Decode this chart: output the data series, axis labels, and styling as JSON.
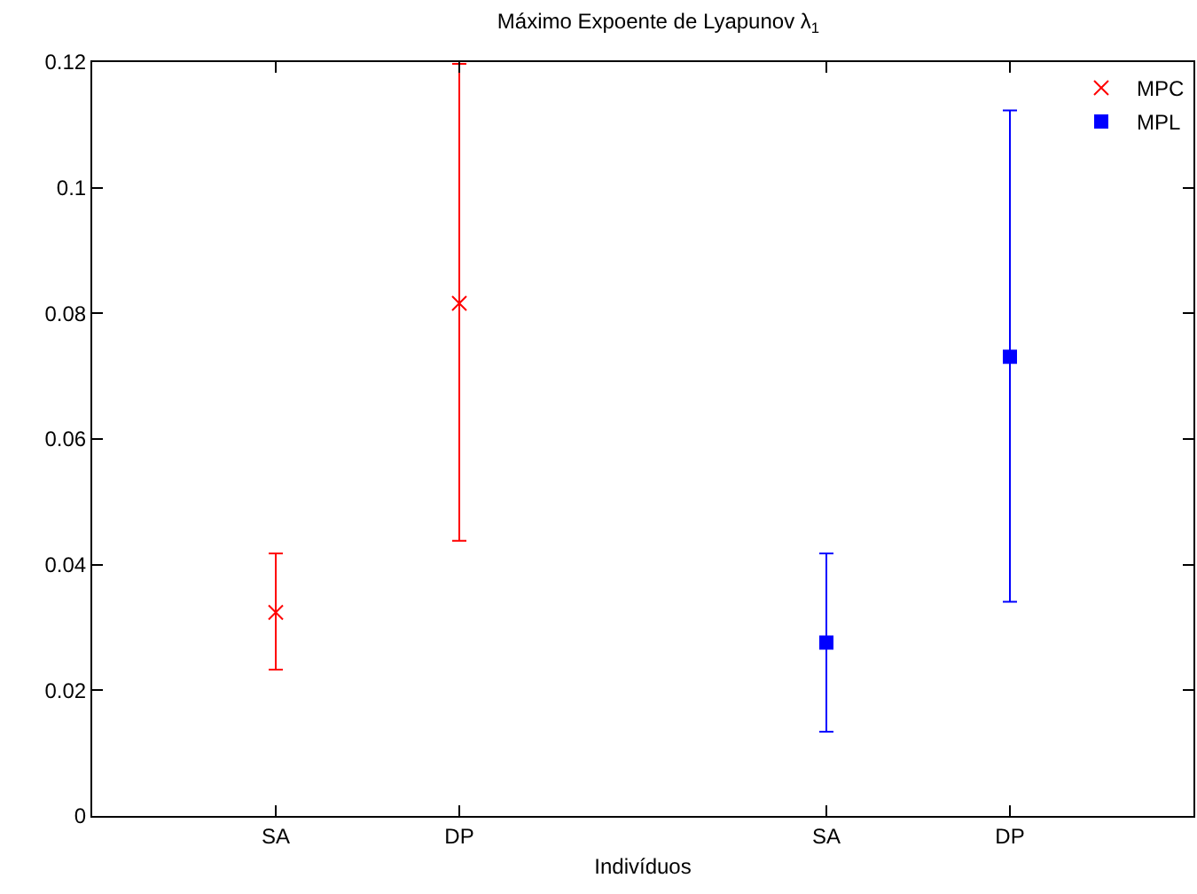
{
  "chart_data": {
    "type": "scatter",
    "title": "Máximo Expoente de Lyapunov λ$_{1}$",
    "xlabel": "Indivíduos",
    "categories": [
      "SA",
      "DP",
      null,
      "SA",
      "DP"
    ],
    "ylim": [
      0,
      0.12
    ],
    "yticks": [
      0,
      0.02,
      0.04,
      0.06,
      0.08,
      0.1,
      0.12
    ],
    "grid": false,
    "legend": "top right",
    "series": [
      {
        "name": "MPC",
        "color": "#ff0000",
        "marker": "cross",
        "values": [
          0.0324,
          0.0816,
          null,
          null,
          null
        ],
        "errors": [
          [
            0.0233,
            0.0418
          ],
          [
            0.0438,
            0.1197
          ],
          null,
          null,
          null
        ]
      },
      {
        "name": "MPL",
        "color": "#0000ff",
        "marker": "square",
        "values": [
          null,
          null,
          null,
          0.0276,
          0.0731
        ],
        "errors": [
          null,
          null,
          null,
          [
            0.0134,
            0.0418
          ],
          [
            0.0341,
            0.1123
          ]
        ]
      }
    ]
  }
}
